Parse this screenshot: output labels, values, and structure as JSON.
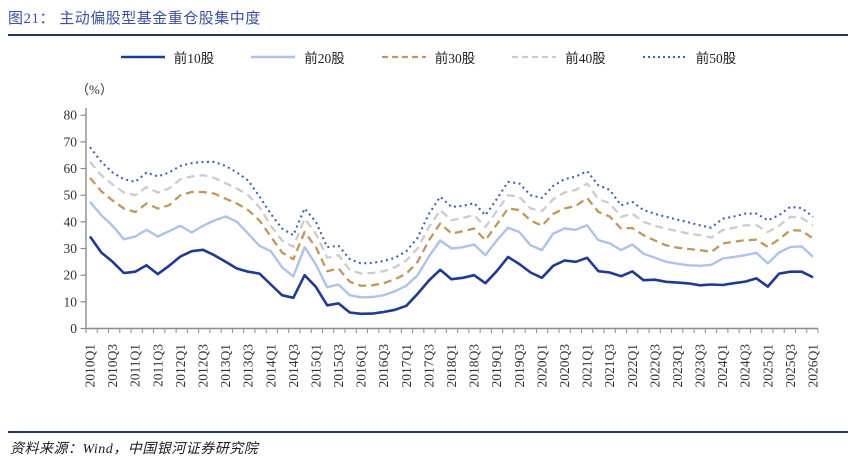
{
  "header": {
    "title": "图21： 主动偏股型基金重仓股集中度"
  },
  "footer": {
    "source": "资料来源：Wind，中国银河证券研究院"
  },
  "colors": {
    "title_blue": "#3b51a3",
    "rule_navy": "#1f3864",
    "axis_gray": "#8c8c8c",
    "tick_text": "#333333"
  },
  "chart_data": {
    "type": "line",
    "title": "主动偏股型基金重仓股集中度",
    "unit_label": "（%）",
    "ylim": [
      0,
      80
    ],
    "yticks": [
      0,
      10,
      20,
      30,
      40,
      50,
      60,
      70,
      80
    ],
    "grid": false,
    "legend_position": "top",
    "xtick_label_every": 2,
    "x_quarters": [
      "2010Q1",
      "2010Q2",
      "2010Q3",
      "2010Q4",
      "2011Q1",
      "2011Q2",
      "2011Q3",
      "2011Q4",
      "2012Q1",
      "2012Q2",
      "2012Q3",
      "2012Q4",
      "2013Q1",
      "2013Q2",
      "2013Q3",
      "2013Q4",
      "2014Q1",
      "2014Q2",
      "2014Q3",
      "2014Q4",
      "2015Q1",
      "2015Q2",
      "2015Q3",
      "2015Q4",
      "2016Q1",
      "2016Q2",
      "2016Q3",
      "2016Q4",
      "2017Q1",
      "2017Q2",
      "2017Q3",
      "2017Q4",
      "2018Q1",
      "2018Q2",
      "2018Q3",
      "2018Q4",
      "2019Q1",
      "2019Q2",
      "2019Q3",
      "2019Q4",
      "2020Q1",
      "2020Q2",
      "2020Q3",
      "2020Q4",
      "2021Q1",
      "2021Q2",
      "2021Q3",
      "2021Q4",
      "2022Q1",
      "2022Q2",
      "2022Q3",
      "2022Q4",
      "2023Q1",
      "2023Q2",
      "2023Q3",
      "2023Q4",
      "2024Q1",
      "2024Q2",
      "2024Q3",
      "2024Q4",
      "2025Q1",
      "2025Q2",
      "2025Q3",
      "2025Q4",
      "2026Q1"
    ],
    "series": [
      {
        "id": "top10",
        "name": "前10股",
        "color": "#1e3a96",
        "style": "solid",
        "width": 2.6,
        "values": [
          34.5,
          28.5,
          25.0,
          20.8,
          21.3,
          23.7,
          20.4,
          23.5,
          27.0,
          29.0,
          29.5,
          27.5,
          25.0,
          22.5,
          21.3,
          20.6,
          16.5,
          12.5,
          11.5,
          20.0,
          15.6,
          8.7,
          9.4,
          6.0,
          5.5,
          5.6,
          6.2,
          7.0,
          8.5,
          13.0,
          18.0,
          22.0,
          18.5,
          19.0,
          20.0,
          17.0,
          21.5,
          26.8,
          24.2,
          21.0,
          19.0,
          23.5,
          25.5,
          25.0,
          26.5,
          21.5,
          21.0,
          19.6,
          21.4,
          18.1,
          18.3,
          17.5,
          17.2,
          16.9,
          16.2,
          16.5,
          16.3,
          17.0,
          17.6,
          18.8,
          15.7,
          20.6,
          21.3,
          21.3,
          19.2
        ]
      },
      {
        "id": "top20",
        "name": "前20股",
        "color": "#aec3e8",
        "style": "solid",
        "width": 2.4,
        "values": [
          47.5,
          42.5,
          38.5,
          33.5,
          34.5,
          37.0,
          34.5,
          36.5,
          38.5,
          36.0,
          38.5,
          40.5,
          42.0,
          40.0,
          35.5,
          31.0,
          29.0,
          23.0,
          19.5,
          30.5,
          24.0,
          15.5,
          16.5,
          12.5,
          11.7,
          11.8,
          12.5,
          14.0,
          16.0,
          20.0,
          27.0,
          33.0,
          30.0,
          30.5,
          31.5,
          27.5,
          33.0,
          37.8,
          36.2,
          31.2,
          29.4,
          35.6,
          37.5,
          37.0,
          38.7,
          33.1,
          31.9,
          29.4,
          31.5,
          28.1,
          26.5,
          25.0,
          24.3,
          23.7,
          23.5,
          23.9,
          26.2,
          26.8,
          27.5,
          28.4,
          24.4,
          28.5,
          30.6,
          30.8,
          26.9
        ]
      },
      {
        "id": "top30",
        "name": "前30股",
        "color": "#c0975c",
        "style": "dashed",
        "width": 2.3,
        "values": [
          56.5,
          51.5,
          48.0,
          45.0,
          43.7,
          46.9,
          45.0,
          46.2,
          50.0,
          51.2,
          51.2,
          50.6,
          48.7,
          46.9,
          44.4,
          40.5,
          34.5,
          28.5,
          26.0,
          36.2,
          30.5,
          21.5,
          22.5,
          17.5,
          16.0,
          16.2,
          17.0,
          18.5,
          20.5,
          25.0,
          33.0,
          39.4,
          35.6,
          36.5,
          37.5,
          33.1,
          39.0,
          45.0,
          44.4,
          40.5,
          38.5,
          43.0,
          45.0,
          46.0,
          49.0,
          43.7,
          42.0,
          37.5,
          37.7,
          35.0,
          33.0,
          31.2,
          30.3,
          29.8,
          29.4,
          28.7,
          31.9,
          32.5,
          33.1,
          33.3,
          30.6,
          33.5,
          36.9,
          36.7,
          33.7
        ]
      },
      {
        "id": "top40",
        "name": "前40股",
        "color": "#cccccc",
        "style": "dashed",
        "width": 2.3,
        "values": [
          62.5,
          57.5,
          54.0,
          51.0,
          50.0,
          53.0,
          51.0,
          52.5,
          56.0,
          57.0,
          57.5,
          56.5,
          54.5,
          52.5,
          50.0,
          45.5,
          38.5,
          33.0,
          30.6,
          41.2,
          35.5,
          26.5,
          27.5,
          22.0,
          20.6,
          20.8,
          21.5,
          23.0,
          25.5,
          30.0,
          38.0,
          44.4,
          40.6,
          41.5,
          42.5,
          38.1,
          44.0,
          50.0,
          49.4,
          45.0,
          44.0,
          48.5,
          51.0,
          52.0,
          54.4,
          48.5,
          47.0,
          41.9,
          43.1,
          40.0,
          38.5,
          37.5,
          36.5,
          35.6,
          35.0,
          34.1,
          36.9,
          37.8,
          38.7,
          38.7,
          36.2,
          38.5,
          41.9,
          41.5,
          38.7
        ]
      },
      {
        "id": "top50",
        "name": "前50股",
        "color": "#3f64ae",
        "style": "dotted",
        "width": 2.1,
        "values": [
          68.0,
          62.5,
          58.5,
          56.0,
          55.0,
          58.5,
          57.0,
          58.5,
          61.0,
          62.0,
          62.5,
          62.5,
          61.0,
          58.5,
          55.5,
          49.5,
          43.0,
          37.5,
          35.0,
          45.0,
          40.0,
          30.5,
          31.0,
          26.0,
          24.4,
          24.6,
          25.3,
          26.5,
          29.0,
          34.0,
          43.0,
          49.4,
          45.6,
          46.0,
          47.0,
          42.5,
          48.5,
          55.0,
          54.4,
          50.0,
          49.0,
          53.5,
          56.0,
          57.0,
          59.0,
          53.7,
          52.0,
          46.2,
          47.5,
          44.4,
          43.0,
          41.9,
          40.8,
          39.8,
          38.7,
          37.8,
          41.2,
          42.0,
          43.1,
          43.1,
          40.6,
          42.5,
          45.6,
          45.2,
          41.9
        ]
      }
    ]
  }
}
